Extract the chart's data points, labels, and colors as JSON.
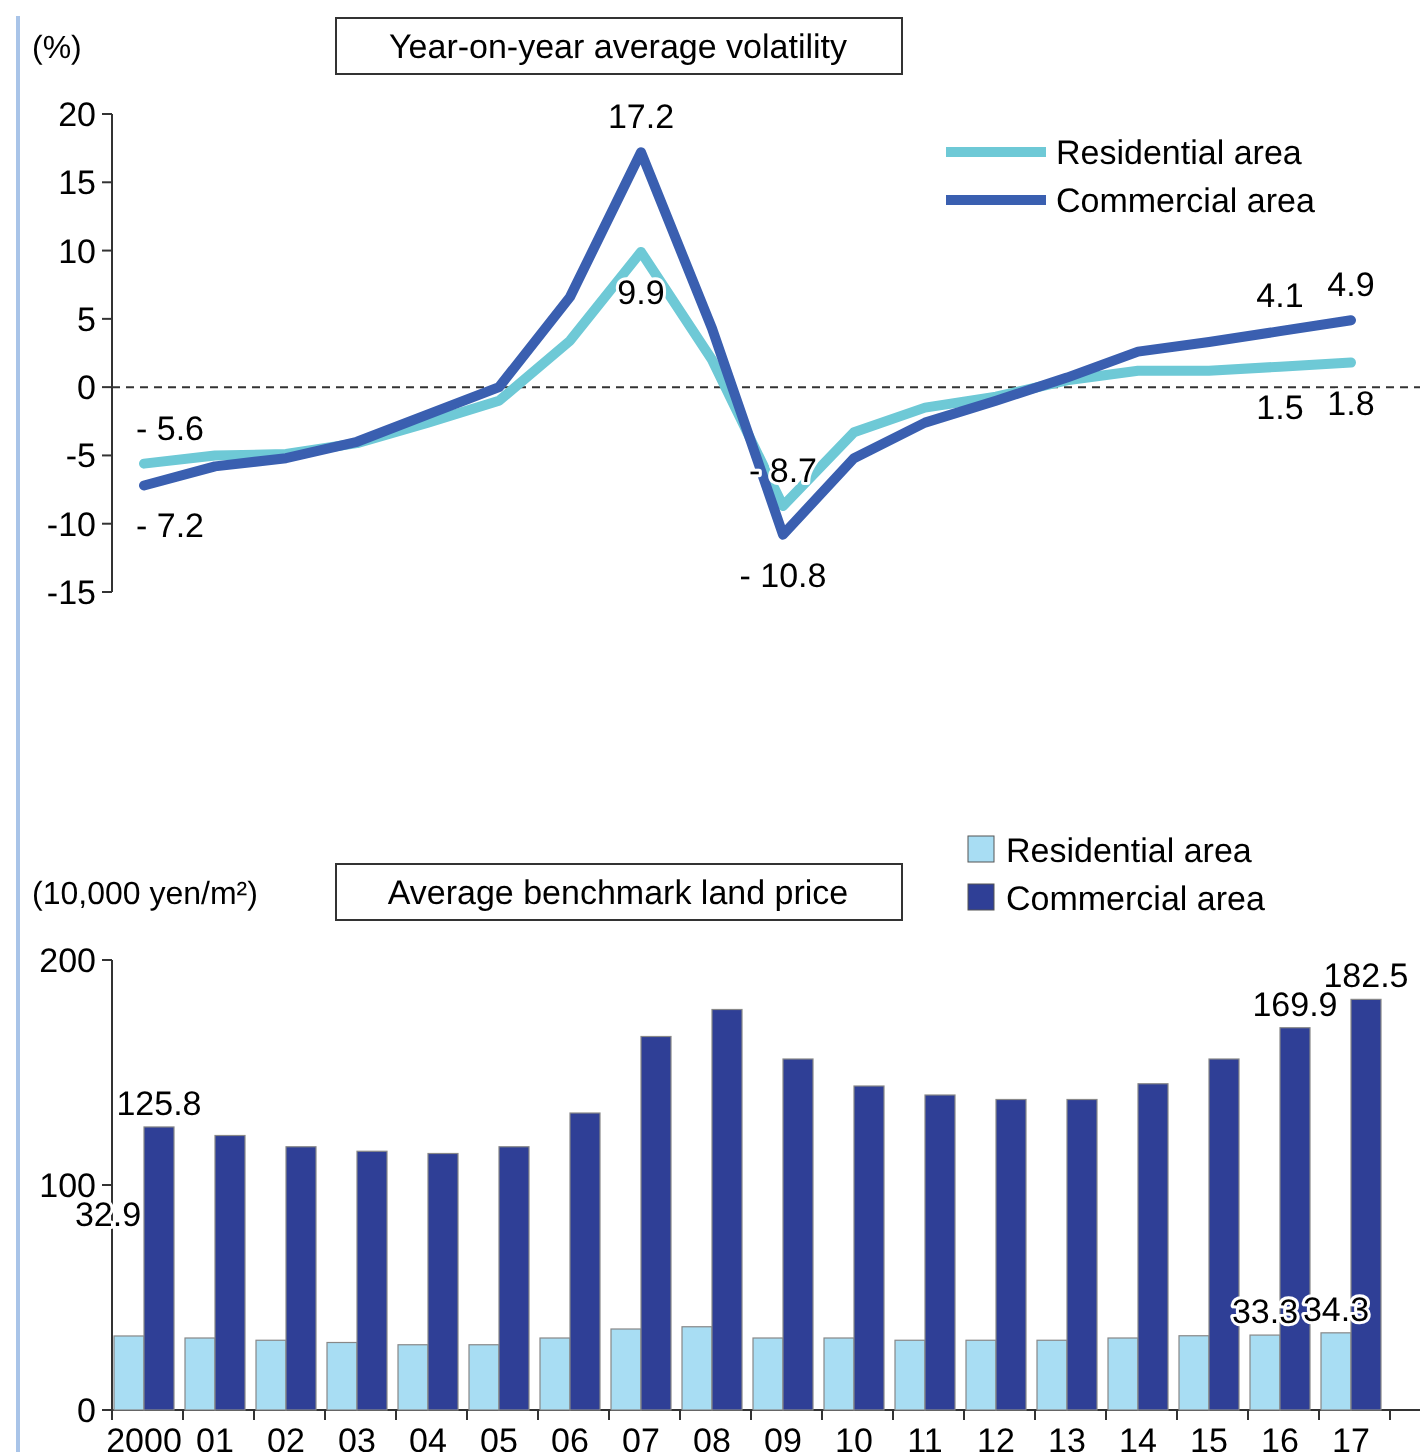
{
  "chart_data": [
    {
      "type": "line",
      "title": "Year-on-year average volatility",
      "ylabel": "(%)",
      "categories": [
        null,
        null,
        null,
        null,
        null,
        null,
        null,
        null,
        null,
        null,
        null,
        null,
        null,
        null,
        null,
        null,
        null,
        null
      ],
      "series": [
        {
          "name": "Residential area",
          "color": "#6ec9d6",
          "values": [
            -5.6,
            -5.0,
            -4.9,
            -4.1,
            -2.6,
            -1.0,
            3.4,
            9.9,
            2.0,
            -8.7,
            -3.3,
            -1.5,
            -0.7,
            0.5,
            1.2,
            1.2,
            1.5,
            1.8
          ],
          "value_labels": [
            "- 5.6",
            null,
            null,
            null,
            null,
            null,
            null,
            "9.9",
            null,
            "- 8.7",
            null,
            null,
            null,
            null,
            null,
            null,
            "1.5",
            "1.8"
          ]
        },
        {
          "name": "Commercial area",
          "color": "#3a5fb0",
          "values": [
            -7.2,
            -5.8,
            -5.2,
            -4.0,
            -2.0,
            0.0,
            6.6,
            17.2,
            4.3,
            -10.8,
            -5.2,
            -2.6,
            -1.0,
            0.7,
            2.6,
            3.3,
            4.1,
            4.9
          ],
          "value_labels": [
            "- 7.2",
            null,
            null,
            null,
            null,
            null,
            null,
            "17.2",
            null,
            "- 10.8",
            null,
            null,
            null,
            null,
            null,
            null,
            "4.1",
            "4.9"
          ]
        }
      ],
      "ylim": [
        -15,
        20
      ],
      "yticks": [
        -15,
        -10,
        -5,
        0,
        5,
        10,
        15,
        20
      ],
      "ref_lines": [
        {
          "axis": "y",
          "value": 0,
          "line_style": "dashed",
          "color": "#333333"
        }
      ],
      "legend": "top right",
      "tick_labels": "y",
      "marker": "none",
      "line_style": "solid"
    },
    {
      "type": "bar",
      "title": "Average benchmark land price",
      "ylabel": "(10,000 yen/m²)",
      "categories": [
        "2000",
        "01",
        "02",
        "03",
        "04",
        "05",
        "06",
        "07",
        "08",
        "09",
        "10",
        "11",
        "12",
        "13",
        "14",
        "15",
        "16",
        "17"
      ],
      "series": [
        {
          "name": "Residential area",
          "color": "#a8ddf3",
          "values": [
            32.9,
            32,
            31,
            30,
            29,
            29,
            32,
            36,
            37,
            32,
            32,
            31,
            31,
            31,
            32,
            33,
            33.3,
            34.3
          ],
          "value_labels": [
            "32.9",
            null,
            null,
            null,
            null,
            null,
            null,
            null,
            null,
            null,
            null,
            null,
            null,
            null,
            null,
            null,
            "33.3",
            "34.3"
          ]
        },
        {
          "name": "Commercial area",
          "color": "#2f3f96",
          "values": [
            125.8,
            122,
            117,
            115,
            114,
            117,
            132,
            166,
            178,
            156,
            144,
            140,
            138,
            138,
            145,
            156,
            169.9,
            182.5
          ],
          "value_labels": [
            "125.8",
            null,
            null,
            null,
            null,
            null,
            null,
            null,
            null,
            null,
            null,
            null,
            null,
            null,
            null,
            null,
            "169.9",
            "182.5"
          ]
        }
      ],
      "ylim": [
        0,
        200
      ],
      "yticks": [
        0,
        100,
        200
      ],
      "legend": "top right"
    }
  ]
}
